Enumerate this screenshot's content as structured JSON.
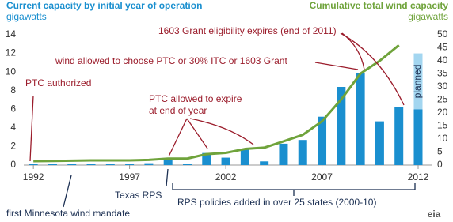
{
  "chart_data": {
    "type": "bar-line",
    "y_label": "Current capacity by initial year of operation",
    "y_unit": "gigawatts",
    "y2_label": "Cumulative total wind capacity",
    "y2_unit": "gigawatts",
    "x": [
      1992,
      1993,
      1994,
      1995,
      1996,
      1997,
      1998,
      1999,
      2000,
      2001,
      2002,
      2003,
      2004,
      2005,
      2006,
      2007,
      2008,
      2009,
      2010,
      2011,
      2012
    ],
    "xlim": [
      1991.5,
      2012.7
    ],
    "xticks": [
      1992,
      1997,
      2002,
      2007,
      2012
    ],
    "ylim": [
      0,
      14
    ],
    "yticks": [
      0,
      2,
      4,
      6,
      8,
      10,
      12,
      14
    ],
    "y2lim": [
      0,
      50
    ],
    "y2ticks": [
      0,
      5,
      10,
      15,
      20,
      25,
      30,
      35,
      40,
      45,
      50
    ],
    "series": [
      {
        "type": "bar",
        "color": "#1a8fcf",
        "values": [
          0.1,
          0.1,
          0.1,
          0.1,
          0.1,
          0.1,
          0.2,
          0.7,
          0.1,
          1.3,
          0.8,
          1.7,
          0.4,
          2.3,
          2.7,
          5.2,
          8.4,
          9.9,
          4.7,
          6.2,
          6.0
        ]
      },
      {
        "type": "bar",
        "name": "planned",
        "color": "#a3d6f0",
        "stacked": true,
        "values": [
          null,
          null,
          null,
          null,
          null,
          null,
          null,
          null,
          null,
          null,
          null,
          null,
          null,
          null,
          null,
          null,
          null,
          null,
          null,
          null,
          6.0
        ]
      },
      {
        "type": "line",
        "axis": "y2",
        "color": "#6fa33b",
        "values": [
          1.5,
          1.6,
          1.7,
          1.8,
          1.8,
          1.8,
          2.0,
          2.5,
          2.5,
          4.2,
          4.7,
          6.2,
          6.7,
          9.1,
          11.6,
          16.8,
          25.2,
          35.1,
          40.0,
          46.0,
          null
        ]
      }
    ],
    "annotations": [
      "1603 Grant eligibility expires (end of 2011)",
      "wind allowed to choose PTC or 30% ITC or 1603 Grant",
      "PTC authorized",
      "PTC allowed to expire",
      "at end of year",
      "Texas RPS",
      "RPS policies added in over 25 states (2000-10)",
      "first Minnesota wind mandate"
    ],
    "logo": "eia"
  }
}
